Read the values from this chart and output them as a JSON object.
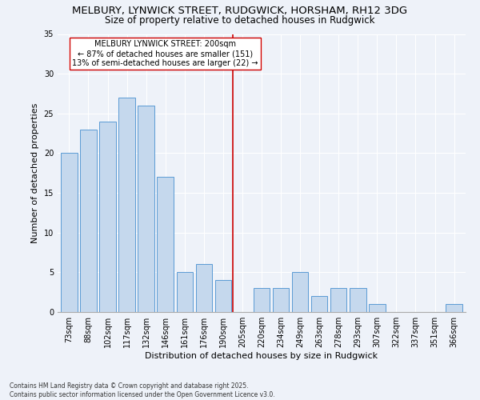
{
  "title1": "MELBURY, LYNWICK STREET, RUDGWICK, HORSHAM, RH12 3DG",
  "title2": "Size of property relative to detached houses in Rudgwick",
  "xlabel": "Distribution of detached houses by size in Rudgwick",
  "ylabel": "Number of detached properties",
  "categories": [
    "73sqm",
    "88sqm",
    "102sqm",
    "117sqm",
    "132sqm",
    "146sqm",
    "161sqm",
    "176sqm",
    "190sqm",
    "205sqm",
    "220sqm",
    "234sqm",
    "249sqm",
    "263sqm",
    "278sqm",
    "293sqm",
    "307sqm",
    "322sqm",
    "337sqm",
    "351sqm",
    "366sqm"
  ],
  "values": [
    20,
    23,
    24,
    27,
    26,
    17,
    5,
    6,
    4,
    0,
    3,
    3,
    5,
    2,
    3,
    3,
    1,
    0,
    0,
    0,
    1
  ],
  "bar_color": "#c5d8ed",
  "bar_edge_color": "#5b9bd5",
  "vline_label": "MELBURY LYNWICK STREET: 200sqm",
  "annotation_line1": "← 87% of detached houses are smaller (151)",
  "annotation_line2": "13% of semi-detached houses are larger (22) →",
  "vline_color": "#cc0000",
  "ylim": [
    0,
    35
  ],
  "yticks": [
    0,
    5,
    10,
    15,
    20,
    25,
    30,
    35
  ],
  "background_color": "#eef2f9",
  "footer_line1": "Contains HM Land Registry data © Crown copyright and database right 2025.",
  "footer_line2": "Contains public sector information licensed under the Open Government Licence v3.0.",
  "title_fontsize": 9.5,
  "subtitle_fontsize": 8.5,
  "axis_label_fontsize": 8,
  "tick_fontsize": 7,
  "footer_fontsize": 5.5
}
